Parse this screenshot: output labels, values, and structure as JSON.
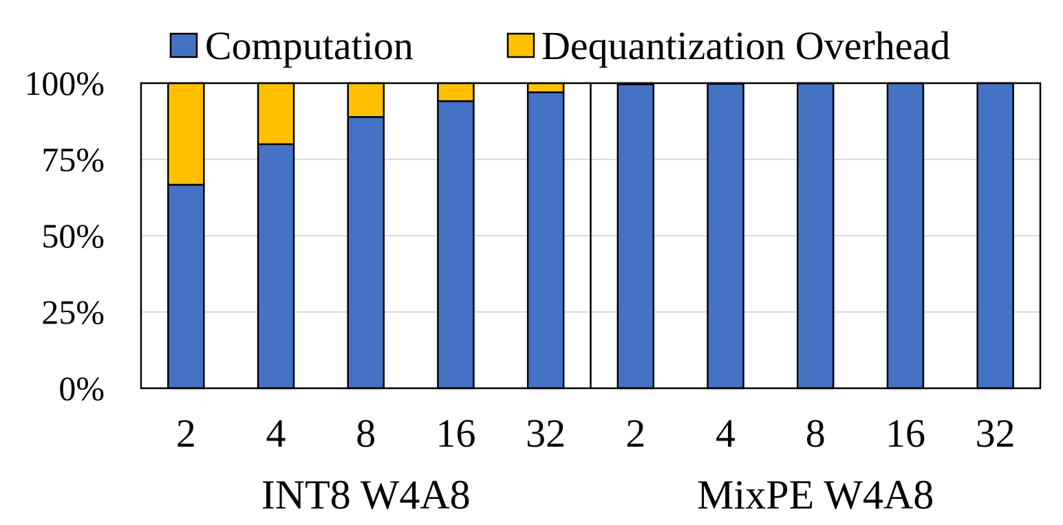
{
  "chart_data": {
    "type": "bar",
    "stacked": true,
    "groups": [
      {
        "label": "INT8 W4A8",
        "categories": [
          "2",
          "4",
          "8",
          "16",
          "32"
        ]
      },
      {
        "label": "MixPE W4A8",
        "categories": [
          "2",
          "4",
          "8",
          "16",
          "32"
        ]
      }
    ],
    "series": [
      {
        "name": "Computation",
        "color": "#4472C4",
        "values": [
          66.7,
          80,
          88.9,
          94.1,
          97,
          99.6,
          99.8,
          99.9,
          99.95,
          99.98
        ]
      },
      {
        "name": "Dequantization Overhead",
        "color": "#FFC000",
        "values": [
          33.3,
          20,
          11.1,
          5.9,
          3,
          0.4,
          0.2,
          0.1,
          0.05,
          0.02
        ]
      }
    ],
    "y_ticks": [
      "0%",
      "25%",
      "50%",
      "75%",
      "100%"
    ],
    "ylim": [
      0,
      100
    ],
    "grid": true,
    "legend_position": "top"
  }
}
